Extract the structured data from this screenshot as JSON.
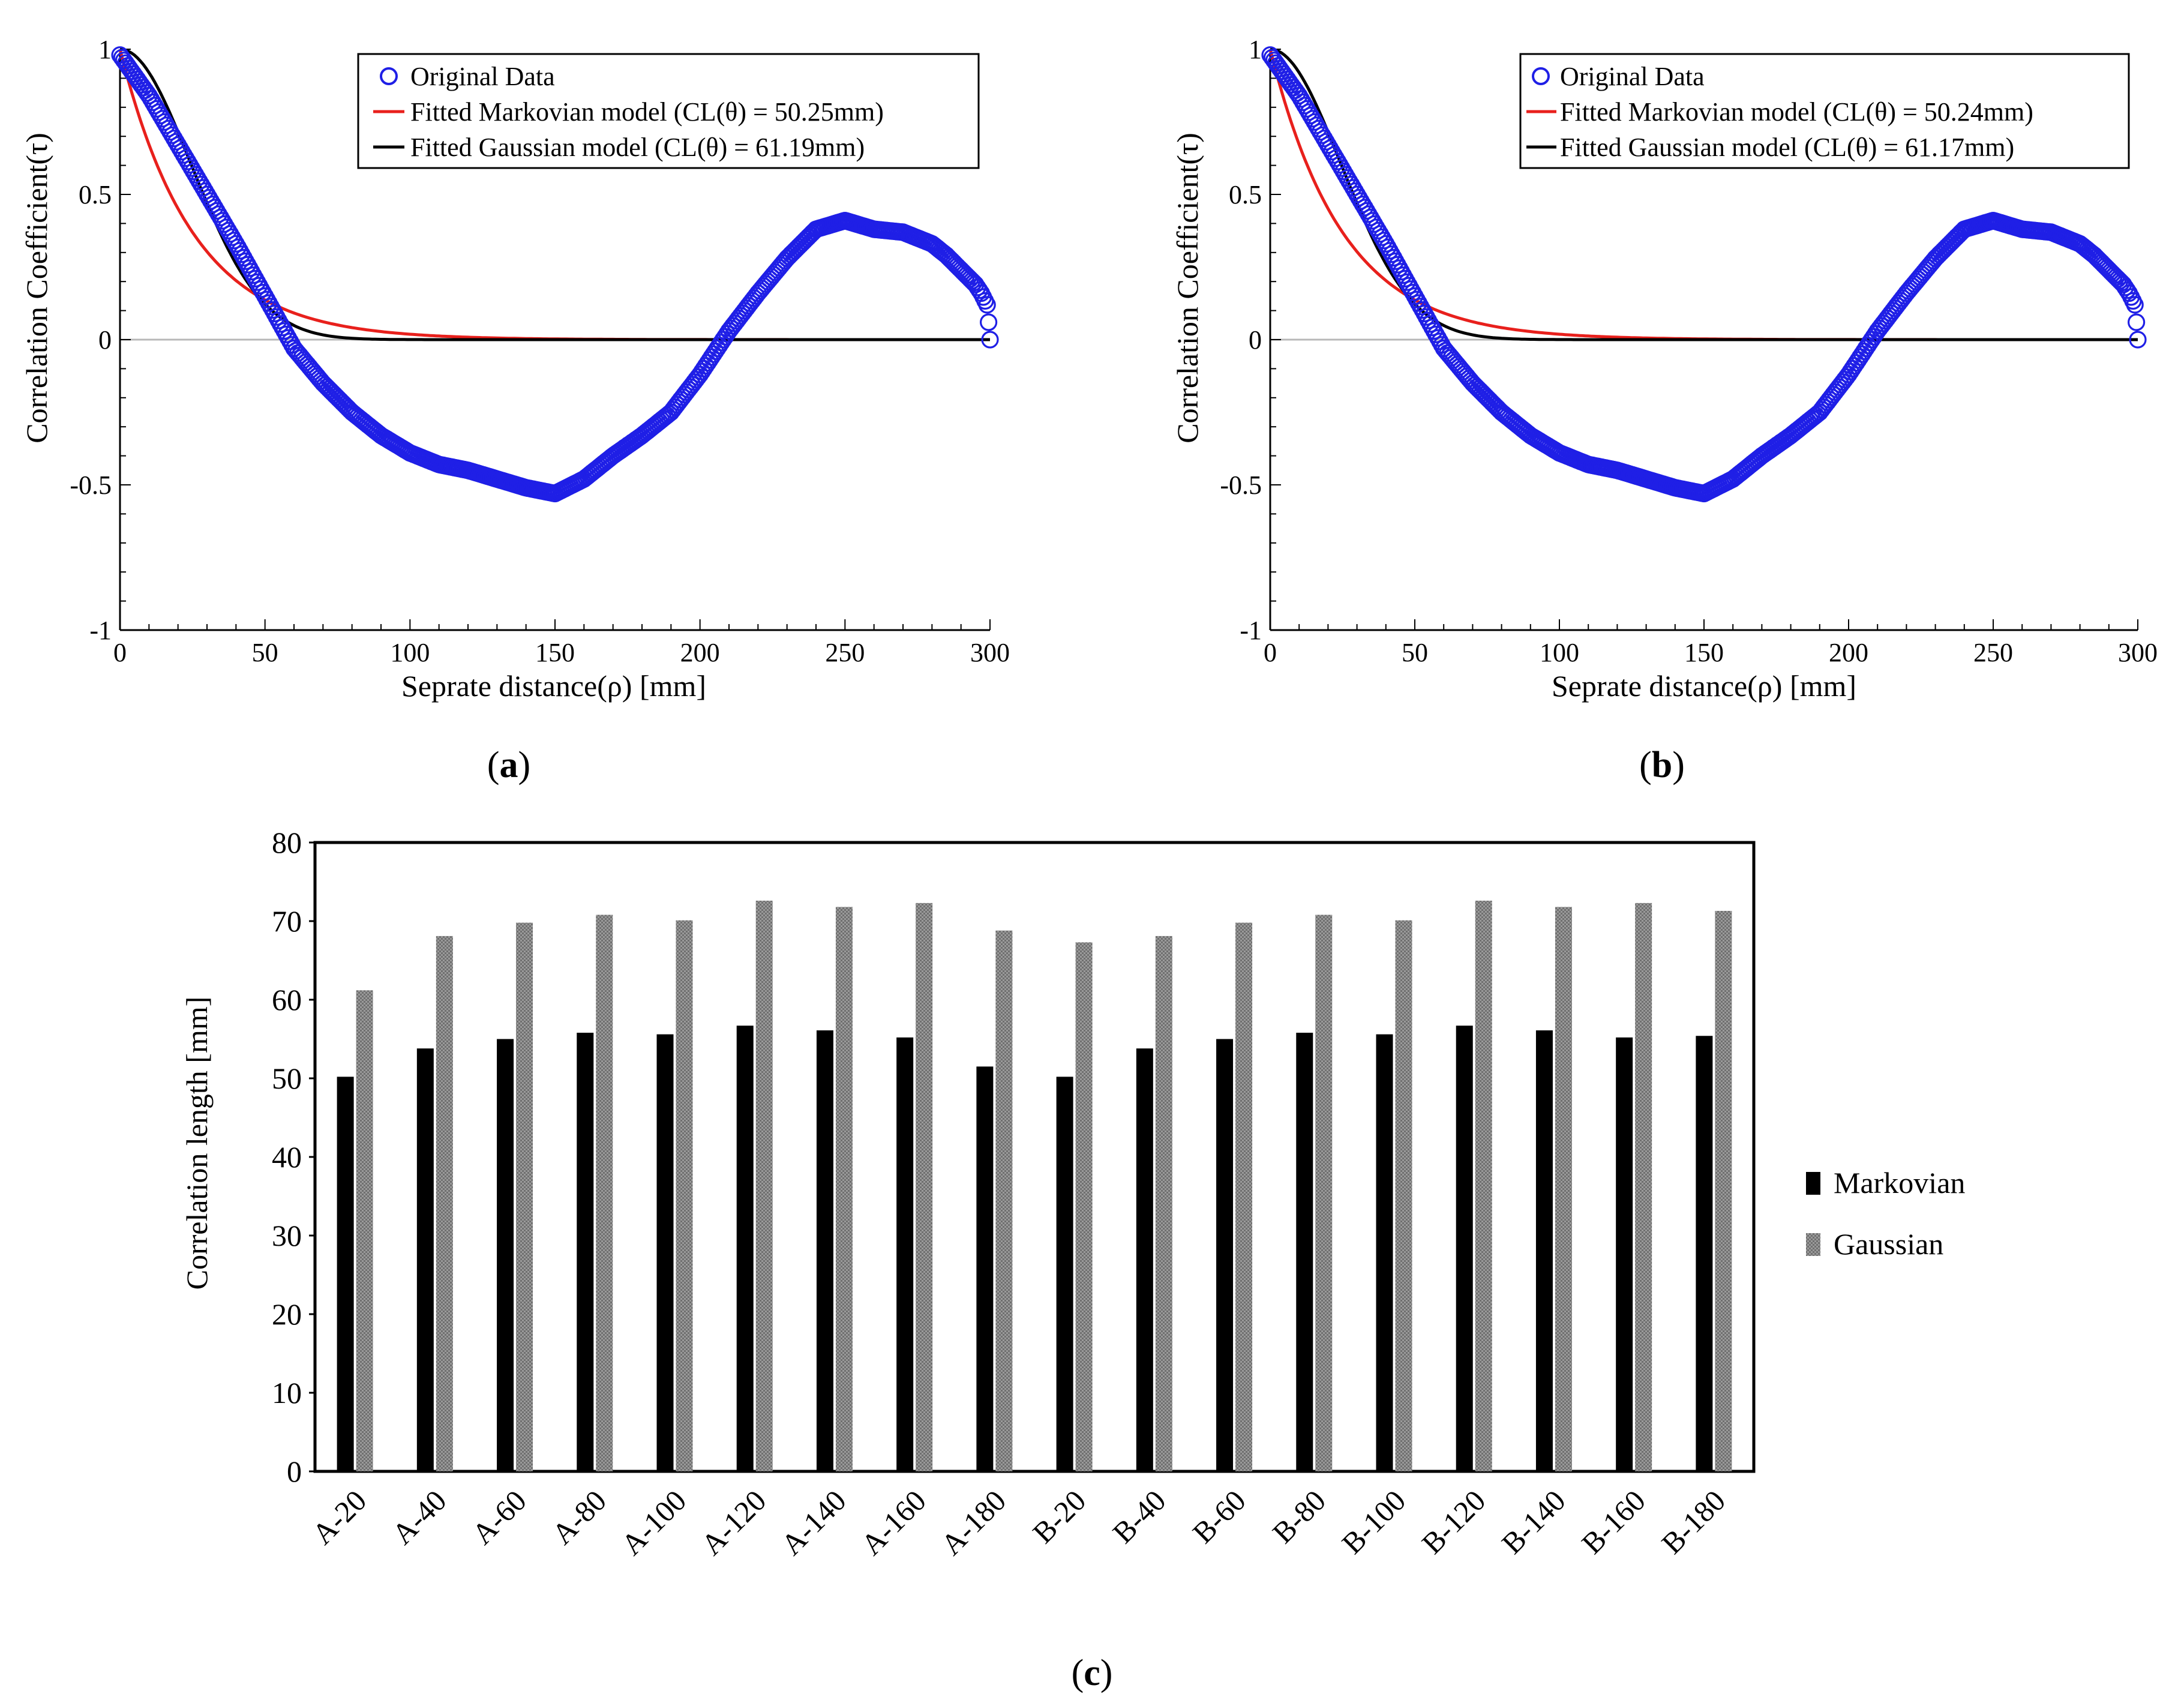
{
  "colors": {
    "data_marker": "#1f1fe6",
    "markovian_line": "#e8201c",
    "gaussian_line": "#000000",
    "markovian_bar": "#000000",
    "gaussian_bar": "#8a8a8a"
  },
  "panels": {
    "a": {
      "label_open": "(",
      "label_letter": "a",
      "label_close": ")",
      "legend": [
        "Original Data",
        "Fitted Markovian model (CL(θ) = 50.25mm)",
        "Fitted Gaussian model (CL(θ) = 61.19mm)"
      ],
      "xlabel": "Seprate distance(ρ) [mm]",
      "ylabel": "Correlation Coefficient(τ)"
    },
    "b": {
      "label_open": "(",
      "label_letter": "b",
      "label_close": ")",
      "legend": [
        "Original Data",
        "Fitted Markovian model (CL(θ) = 50.24mm)",
        "Fitted Gaussian model (CL(θ) = 61.17mm)"
      ],
      "xlabel": "Seprate distance(ρ) [mm]",
      "ylabel": "Correlation Coefficient(τ)"
    },
    "c": {
      "label_open": "(",
      "label_letter": "c",
      "label_close": ")",
      "xlabel": "",
      "ylabel": "Correlation length [mm]",
      "legend": [
        "Markovian",
        "Gaussian"
      ]
    }
  },
  "chart_data": [
    {
      "id": "a",
      "type": "line",
      "title": "",
      "xlabel": "Seprate distance(ρ) [mm]",
      "ylabel": "Correlation Coefficient(τ)",
      "xlim": [
        0,
        300
      ],
      "ylim": [
        -1,
        1
      ],
      "xticks": [
        0,
        50,
        100,
        150,
        200,
        250,
        300
      ],
      "yticks": [
        -1,
        -0.5,
        0,
        0.5,
        1
      ],
      "ytick_labels": [
        "-1",
        "-0.5",
        "0",
        "0.5",
        "1"
      ],
      "zero_line": true,
      "legend_position": "top-right",
      "series": [
        {
          "name": "Original Data",
          "style": "circle-markers",
          "x": [
            0,
            10,
            20,
            30,
            40,
            50,
            60,
            70,
            80,
            90,
            100,
            110,
            120,
            130,
            140,
            150,
            160,
            170,
            180,
            190,
            200,
            210,
            220,
            230,
            240,
            250,
            260,
            270,
            280,
            285,
            290,
            295,
            297,
            299,
            300
          ],
          "y": [
            0.98,
            0.84,
            0.67,
            0.5,
            0.33,
            0.15,
            -0.03,
            -0.15,
            -0.25,
            -0.33,
            -0.39,
            -0.43,
            -0.45,
            -0.48,
            -0.51,
            -0.53,
            -0.48,
            -0.4,
            -0.33,
            -0.25,
            -0.12,
            0.03,
            0.16,
            0.28,
            0.38,
            0.41,
            0.38,
            0.37,
            0.33,
            0.29,
            0.24,
            0.19,
            0.16,
            0.12,
            0.0
          ]
        },
        {
          "name": "Fitted Markovian model (CL(θ) = 50.25mm)",
          "function": "markovian",
          "cl": 50.25
        },
        {
          "name": "Fitted Gaussian model (CL(θ) = 61.19mm)",
          "function": "gaussian",
          "cl": 61.19
        }
      ]
    },
    {
      "id": "b",
      "type": "line",
      "title": "",
      "xlabel": "Seprate distance(ρ) [mm]",
      "ylabel": "Correlation Coefficient(τ)",
      "xlim": [
        0,
        300
      ],
      "ylim": [
        -1,
        1
      ],
      "xticks": [
        0,
        50,
        100,
        150,
        200,
        250,
        300
      ],
      "yticks": [
        -1,
        -0.5,
        0,
        0.5,
        1
      ],
      "ytick_labels": [
        "-1",
        "-0.5",
        "0",
        "0.5",
        "1"
      ],
      "zero_line": true,
      "legend_position": "top-right",
      "series": [
        {
          "name": "Original Data",
          "style": "circle-markers",
          "x": [
            0,
            10,
            20,
            30,
            40,
            50,
            60,
            70,
            80,
            90,
            100,
            110,
            120,
            130,
            140,
            150,
            160,
            170,
            180,
            190,
            200,
            210,
            220,
            230,
            240,
            250,
            260,
            270,
            280,
            285,
            290,
            295,
            297,
            299,
            300
          ],
          "y": [
            0.98,
            0.84,
            0.67,
            0.5,
            0.33,
            0.15,
            -0.03,
            -0.15,
            -0.25,
            -0.33,
            -0.39,
            -0.43,
            -0.45,
            -0.48,
            -0.51,
            -0.53,
            -0.48,
            -0.4,
            -0.33,
            -0.25,
            -0.12,
            0.03,
            0.16,
            0.28,
            0.38,
            0.41,
            0.38,
            0.37,
            0.33,
            0.29,
            0.24,
            0.19,
            0.16,
            0.12,
            0.0
          ]
        },
        {
          "name": "Fitted Markovian model (CL(θ) = 50.24mm)",
          "function": "markovian",
          "cl": 50.24
        },
        {
          "name": "Fitted Gaussian model (CL(θ) = 61.17mm)",
          "function": "gaussian",
          "cl": 61.17
        }
      ]
    },
    {
      "id": "c",
      "type": "bar",
      "title": "",
      "xlabel": "",
      "ylabel": "Correlation length [mm]",
      "ylim": [
        0,
        80
      ],
      "yticks": [
        0,
        10,
        20,
        30,
        40,
        50,
        60,
        70,
        80
      ],
      "legend_position": "right",
      "categories": [
        "A-20",
        "A-40",
        "A-60",
        "A-80",
        "A-100",
        "A-120",
        "A-140",
        "A-160",
        "A-180",
        "B-20",
        "B-40",
        "B-60",
        "B-80",
        "B-100",
        "B-120",
        "B-140",
        "B-160",
        "B-180"
      ],
      "series": [
        {
          "name": "Markovian",
          "values": [
            50.2,
            53.8,
            55.0,
            55.8,
            55.6,
            56.7,
            56.1,
            55.2,
            51.5,
            50.2,
            53.8,
            55.0,
            55.8,
            55.6,
            56.7,
            56.1,
            55.2,
            55.4
          ]
        },
        {
          "name": "Gaussian",
          "values": [
            61.2,
            68.1,
            69.8,
            70.8,
            70.1,
            72.6,
            71.8,
            72.3,
            68.8,
            67.3,
            68.1,
            69.8,
            70.8,
            70.1,
            72.6,
            71.8,
            72.3,
            71.3
          ]
        }
      ]
    }
  ]
}
